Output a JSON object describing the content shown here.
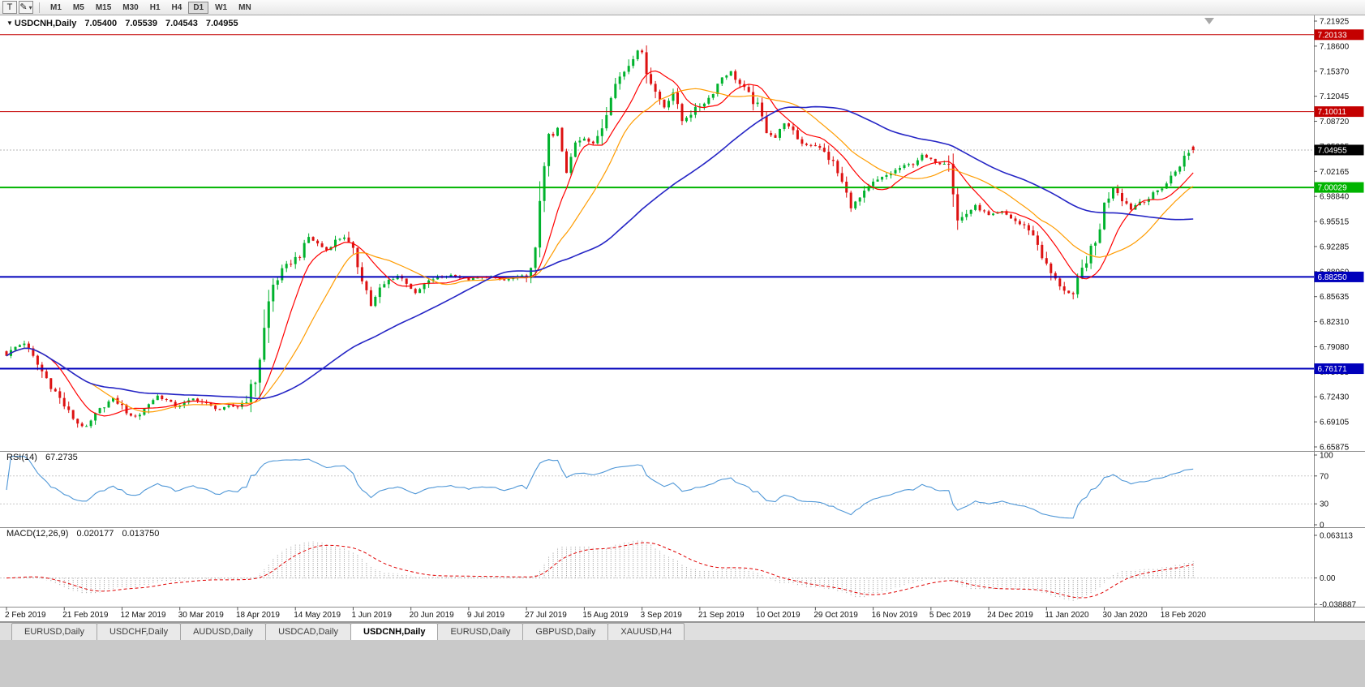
{
  "toolbar": {
    "text_tool": "T",
    "draw_tool_icon": "✎",
    "dropdown_icon": "▾",
    "timeframes": [
      "M1",
      "M5",
      "M15",
      "M30",
      "H1",
      "H4",
      "D1",
      "W1",
      "MN"
    ],
    "active_timeframe": "D1"
  },
  "chart": {
    "header": {
      "marker": "▼",
      "symbol": "USDCNH,Daily",
      "open": "7.05400",
      "high": "7.05539",
      "low": "7.04543",
      "close": "7.04955"
    }
  },
  "rsi_panel": {
    "title": "RSI(14)",
    "value": "67.2735"
  },
  "macd_panel": {
    "title": "MACD(12,26,9)",
    "value_main": "0.020177",
    "value_signal": "0.013750"
  },
  "tabs": [
    {
      "label": "EURUSD,Daily",
      "active": false
    },
    {
      "label": "USDCHF,Daily",
      "active": false
    },
    {
      "label": "AUDUSD,Daily",
      "active": false
    },
    {
      "label": "USDCAD,Daily",
      "active": false
    },
    {
      "label": "USDCNH,Daily",
      "active": true
    },
    {
      "label": "EURUSD,Daily",
      "active": false
    },
    {
      "label": "GBPUSD,Daily",
      "active": false
    },
    {
      "label": "XAUUSD,H4",
      "active": false
    }
  ],
  "chart_data": {
    "type": "candlestick",
    "title": "USDCNH Daily",
    "y_ticks": [
      "7.21925",
      "7.18600",
      "7.15370",
      "7.12045",
      "7.08720",
      "7.05395",
      "7.02165",
      "6.98840",
      "6.95515",
      "6.92285",
      "6.88960",
      "6.85635",
      "6.82310",
      "6.79080",
      "6.75755",
      "6.72430",
      "6.69105",
      "6.65875"
    ],
    "x_labels": [
      "2 Feb 2019",
      "21 Feb 2019",
      "12 Mar 2019",
      "30 Mar 2019",
      "18 Apr 2019",
      "14 May 2019",
      "1 Jun 2019",
      "20 Jun 2019",
      "9 Jul 2019",
      "27 Jul 2019",
      "15 Aug 2019",
      "3 Sep 2019",
      "21 Sep 2019",
      "10 Oct 2019",
      "29 Oct 2019",
      "16 Nov 2019",
      "5 Dec 2019",
      "24 Dec 2019",
      "11 Jan 2020",
      "30 Jan 2020",
      "18 Feb 2020"
    ],
    "bars_per_label": 13,
    "bar_count": 268,
    "close_keypoints": [
      [
        0,
        6.78
      ],
      [
        2,
        6.79
      ],
      [
        4,
        6.796
      ],
      [
        6,
        6.776
      ],
      [
        8,
        6.758
      ],
      [
        10,
        6.74
      ],
      [
        12,
        6.722
      ],
      [
        14,
        6.704
      ],
      [
        16,
        6.69
      ],
      [
        18,
        6.684
      ],
      [
        20,
        6.7
      ],
      [
        22,
        6.714
      ],
      [
        24,
        6.722
      ],
      [
        26,
        6.712
      ],
      [
        28,
        6.698
      ],
      [
        30,
        6.702
      ],
      [
        32,
        6.716
      ],
      [
        34,
        6.726
      ],
      [
        36,
        6.72
      ],
      [
        38,
        6.712
      ],
      [
        40,
        6.716
      ],
      [
        42,
        6.722
      ],
      [
        44,
        6.718
      ],
      [
        46,
        6.712
      ],
      [
        48,
        6.708
      ],
      [
        50,
        6.712
      ],
      [
        52,
        6.712
      ],
      [
        54,
        6.722
      ],
      [
        56,
        6.748
      ],
      [
        57,
        6.778
      ],
      [
        58,
        6.812
      ],
      [
        59,
        6.848
      ],
      [
        60,
        6.872
      ],
      [
        62,
        6.89
      ],
      [
        64,
        6.902
      ],
      [
        66,
        6.912
      ],
      [
        68,
        6.935
      ],
      [
        70,
        6.926
      ],
      [
        72,
        6.918
      ],
      [
        74,
        6.93
      ],
      [
        76,
        6.936
      ],
      [
        78,
        6.914
      ],
      [
        80,
        6.884
      ],
      [
        82,
        6.845
      ],
      [
        84,
        6.866
      ],
      [
        86,
        6.878
      ],
      [
        88,
        6.884
      ],
      [
        90,
        6.876
      ],
      [
        92,
        6.86
      ],
      [
        94,
        6.872
      ],
      [
        96,
        6.88
      ],
      [
        100,
        6.885
      ],
      [
        104,
        6.879
      ],
      [
        108,
        6.883
      ],
      [
        112,
        6.878
      ],
      [
        116,
        6.883
      ],
      [
        118,
        6.886
      ],
      [
        119,
        6.906
      ],
      [
        120,
        6.99
      ],
      [
        121,
        7.042
      ],
      [
        122,
        7.06
      ],
      [
        124,
        7.076
      ],
      [
        126,
        7.018
      ],
      [
        128,
        7.062
      ],
      [
        130,
        7.066
      ],
      [
        132,
        7.056
      ],
      [
        134,
        7.082
      ],
      [
        136,
        7.126
      ],
      [
        138,
        7.146
      ],
      [
        140,
        7.162
      ],
      [
        142,
        7.182
      ],
      [
        143,
        7.174
      ],
      [
        144,
        7.156
      ],
      [
        146,
        7.126
      ],
      [
        148,
        7.106
      ],
      [
        150,
        7.126
      ],
      [
        152,
        7.088
      ],
      [
        154,
        7.098
      ],
      [
        156,
        7.108
      ],
      [
        158,
        7.118
      ],
      [
        161,
        7.146
      ],
      [
        163,
        7.152
      ],
      [
        165,
        7.136
      ],
      [
        167,
        7.122
      ],
      [
        169,
        7.106
      ],
      [
        171,
        7.076
      ],
      [
        173,
        7.066
      ],
      [
        175,
        7.086
      ],
      [
        177,
        7.072
      ],
      [
        179,
        7.058
      ],
      [
        182,
        7.056
      ],
      [
        184,
        7.046
      ],
      [
        186,
        7.032
      ],
      [
        188,
        7.006
      ],
      [
        190,
        6.976
      ],
      [
        192,
        6.986
      ],
      [
        195,
        7.006
      ],
      [
        198,
        7.016
      ],
      [
        201,
        7.026
      ],
      [
        204,
        7.032
      ],
      [
        206,
        7.042
      ],
      [
        208,
        7.036
      ],
      [
        210,
        7.032
      ],
      [
        212,
        7.04
      ],
      [
        213,
        6.996
      ],
      [
        214,
        6.956
      ],
      [
        216,
        6.966
      ],
      [
        218,
        6.976
      ],
      [
        221,
        6.963
      ],
      [
        224,
        6.968
      ],
      [
        226,
        6.96
      ],
      [
        228,
        6.952
      ],
      [
        230,
        6.946
      ],
      [
        232,
        6.926
      ],
      [
        234,
        6.896
      ],
      [
        236,
        6.878
      ],
      [
        238,
        6.866
      ],
      [
        240,
        6.856
      ],
      [
        241,
        6.876
      ],
      [
        243,
        6.906
      ],
      [
        245,
        6.926
      ],
      [
        247,
        6.976
      ],
      [
        249,
        7.002
      ],
      [
        251,
        6.986
      ],
      [
        253,
        6.972
      ],
      [
        255,
        6.982
      ],
      [
        257,
        6.986
      ],
      [
        259,
        6.996
      ],
      [
        261,
        7.006
      ],
      [
        263,
        7.022
      ],
      [
        265,
        7.04
      ],
      [
        267,
        7.05
      ]
    ],
    "last_bar": {
      "open": 7.054,
      "high": 7.05539,
      "low": 7.04543,
      "close": 7.04955
    },
    "current_price": 7.04955,
    "current_price_label": "7.04955",
    "levels": [
      {
        "price": 7.20133,
        "label": "7.20133",
        "color": "#c40000",
        "width": 1
      },
      {
        "price": 7.10011,
        "label": "7.10011",
        "color": "#c40000",
        "width": 1
      },
      {
        "price": 7.00029,
        "label": "7.00029",
        "color": "#00b400",
        "width": 2
      },
      {
        "price": 6.8825,
        "label": "6.88250",
        "color": "#0000bb",
        "width": 2
      },
      {
        "price": 6.76171,
        "label": "6.76171",
        "color": "#0000bb",
        "width": 2
      }
    ],
    "candle_colors": {
      "up": "#00b22d",
      "down": "#dd1111"
    },
    "moving_averages": [
      {
        "period": 10,
        "color": "#ff0000"
      },
      {
        "period": 20,
        "color": "#ff9c00"
      },
      {
        "period": 55,
        "color": "#2525c5"
      }
    ],
    "rsi": {
      "period": 14,
      "value": 67.2735,
      "axis": [
        100,
        70,
        30,
        0
      ],
      "guide_levels": [
        70,
        30
      ],
      "color": "#4f97d7"
    },
    "macd": {
      "params": [
        12,
        26,
        9
      ],
      "main": 0.020177,
      "signal": 0.01375,
      "axis": [
        "0.063113",
        "0.00",
        "-0.038887"
      ],
      "axis_values": [
        0.063113,
        0.0,
        -0.038887
      ],
      "histogram_color": "#9b9b9b",
      "signal_color": "#e00000"
    }
  }
}
